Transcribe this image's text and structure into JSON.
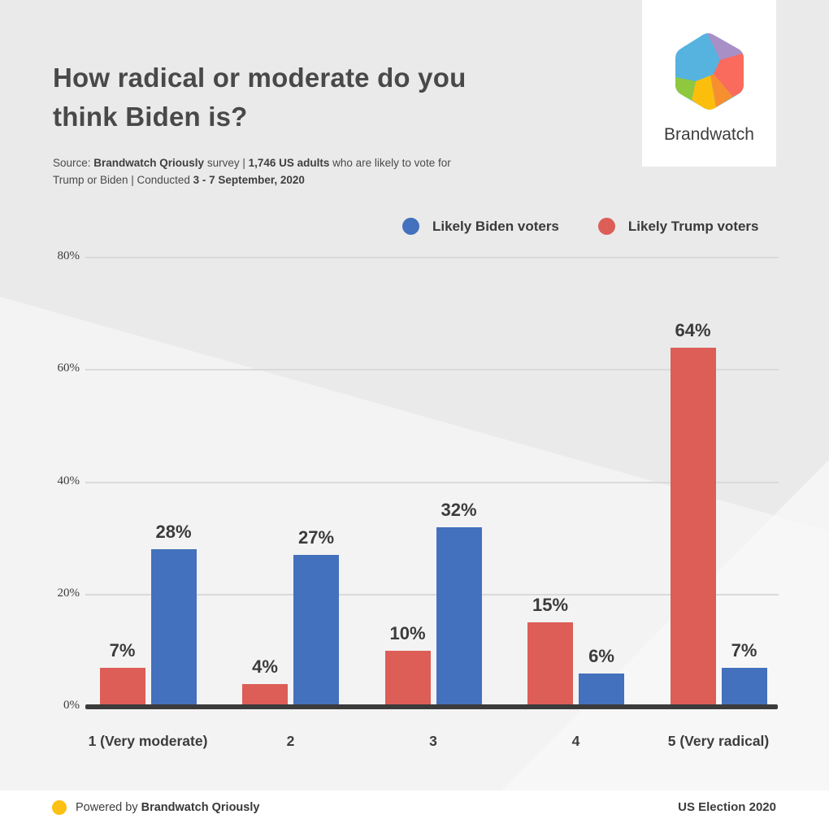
{
  "header": {
    "title": "How radical or moderate do you think Biden is?",
    "source_segments": [
      {
        "text": "Source: ",
        "bold": false
      },
      {
        "text": "Brandwatch Qriously",
        "bold": true
      },
      {
        "text": " survey | ",
        "bold": false
      },
      {
        "text": "1,746 US adults",
        "bold": true
      },
      {
        "text": " who are likely to vote for Trump or Biden | Conducted ",
        "bold": false
      },
      {
        "text": "3 - 7 September, 2020",
        "bold": true
      }
    ],
    "logo_text": "Brandwatch"
  },
  "logo": {
    "colors": {
      "blue": "#56B3DF",
      "purple": "#A88FC6",
      "coral": "#FA6A5D",
      "orange": "#F78F31",
      "yellow": "#FCBE0C",
      "green": "#8FC73E"
    }
  },
  "chart_data": {
    "type": "bar",
    "title": "How radical or moderate do you think Biden is?",
    "categories": [
      "1 (Very moderate)",
      "2",
      "3",
      "4",
      "5 (Very radical)"
    ],
    "series": [
      {
        "name": "Likely Trump voters",
        "color": "#DC5E57",
        "values": [
          7,
          4,
          10,
          15,
          64
        ]
      },
      {
        "name": "Likely Biden voters",
        "color": "#4471BD",
        "values": [
          28,
          27,
          32,
          6,
          7
        ]
      }
    ],
    "legend_order": [
      "Likely Biden voters",
      "Likely Trump voters"
    ],
    "value_suffix": "%",
    "yticks": [
      0,
      20,
      40,
      60,
      80
    ],
    "ylim": [
      0,
      80
    ],
    "grid": true,
    "legend_position": "top-right",
    "xlabel": "",
    "ylabel": ""
  },
  "footer": {
    "powered_segments": [
      {
        "text": "Powered by ",
        "bold": false
      },
      {
        "text": "Brandwatch Qriously",
        "bold": true
      }
    ],
    "right_text": "US Election 2020",
    "dot_color": "#FCC013"
  }
}
